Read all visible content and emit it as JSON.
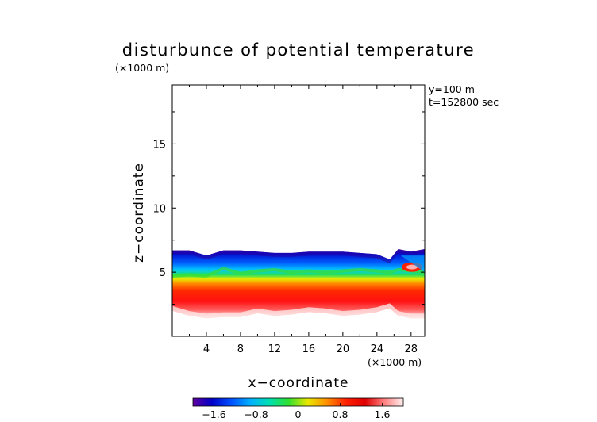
{
  "chart_data": {
    "type": "heatmap",
    "title": "disturbunce of potential temperature",
    "xlabel": "x−coordinate",
    "ylabel": "z−coordinate",
    "x_unit": "(×1000 m)",
    "y_unit": "(×1000 m)",
    "annotations": [
      "y=100 m",
      "t=152800 sec"
    ],
    "xlim": [
      0,
      29.6
    ],
    "ylim": [
      0,
      19.6
    ],
    "x_ticks": [
      4,
      8,
      12,
      16,
      20,
      24,
      28
    ],
    "x_tick_labels": [
      "4",
      "8",
      "12",
      "16",
      "20",
      "24",
      "28"
    ],
    "y_ticks": [
      5,
      10,
      15
    ],
    "y_tick_labels": [
      "5",
      "10",
      "15"
    ],
    "grid": false,
    "colorbar": {
      "range": [
        -2.0,
        2.0
      ],
      "ticks": [
        -1.6,
        -0.8,
        0,
        0.8,
        1.6
      ],
      "tick_labels": [
        "−1.6",
        "−0.8",
        "0",
        "0.8",
        "1.6"
      ],
      "colors": [
        "#6000a0",
        "#0000c8",
        "#0050ff",
        "#00b0ff",
        "#00e0b0",
        "#30e030",
        "#e8e800",
        "#ff9000",
        "#ff2000",
        "#e00000",
        "#ff8080",
        "#fff0f0"
      ]
    },
    "field_profiles": {
      "x": [
        0,
        2,
        4,
        6,
        8,
        10,
        12,
        14,
        16,
        18,
        20,
        22,
        24,
        25.5,
        26.5,
        28,
        29.6
      ],
      "top_z": [
        6.7,
        6.7,
        6.3,
        6.7,
        6.7,
        6.6,
        6.5,
        6.5,
        6.6,
        6.6,
        6.6,
        6.5,
        6.4,
        6.0,
        6.8,
        6.6,
        6.8
      ],
      "green_z": [
        4.7,
        4.8,
        4.7,
        5.3,
        4.9,
        5.1,
        5.2,
        5.0,
        5.1,
        5.0,
        5.1,
        5.2,
        5.1,
        5.0,
        5.2,
        5.1,
        5.0
      ],
      "bottom_z": [
        2.0,
        1.6,
        1.4,
        1.5,
        1.5,
        1.8,
        1.6,
        1.7,
        1.9,
        1.8,
        1.6,
        1.7,
        1.9,
        2.2,
        1.6,
        1.4,
        1.4
      ]
    }
  }
}
